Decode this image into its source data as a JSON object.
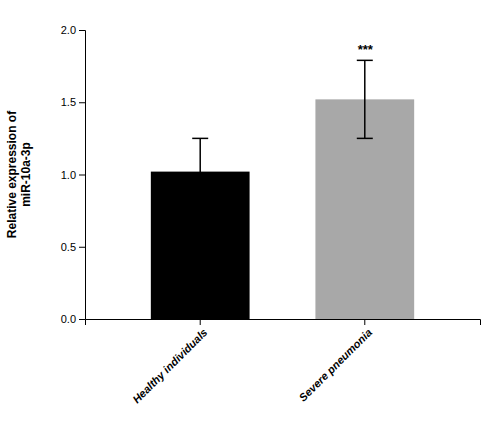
{
  "chart_data": {
    "type": "bar",
    "categories": [
      "Healthy individuals",
      "Severe pneumonia"
    ],
    "values": [
      1.02,
      1.52
    ],
    "errors": [
      0.23,
      0.27
    ],
    "colors": [
      "#000000",
      "#a8a8a8"
    ],
    "ylabel": "Relative expression of\nmiR-10a-3p",
    "ylim": [
      0,
      2.0
    ],
    "yticks": [
      {
        "value": 0.0,
        "label": "0.0"
      },
      0.5,
      {
        "value": 1.0,
        "label": "1.0"
      },
      1.5,
      {
        "value": 2.0,
        "label": "2.0"
      }
    ],
    "annotations": [
      {
        "text": "***",
        "category": "Severe pneumonia"
      }
    ],
    "grid": false
  }
}
